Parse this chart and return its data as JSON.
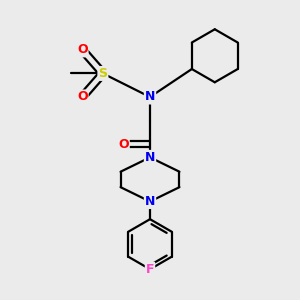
{
  "bg_color": "#ebebeb",
  "atom_colors": {
    "C": "#000000",
    "N": "#0000ee",
    "O": "#ff0000",
    "S": "#cccc00",
    "F": "#ff44cc",
    "H": "#000000"
  },
  "line_color": "#000000",
  "line_width": 1.6
}
